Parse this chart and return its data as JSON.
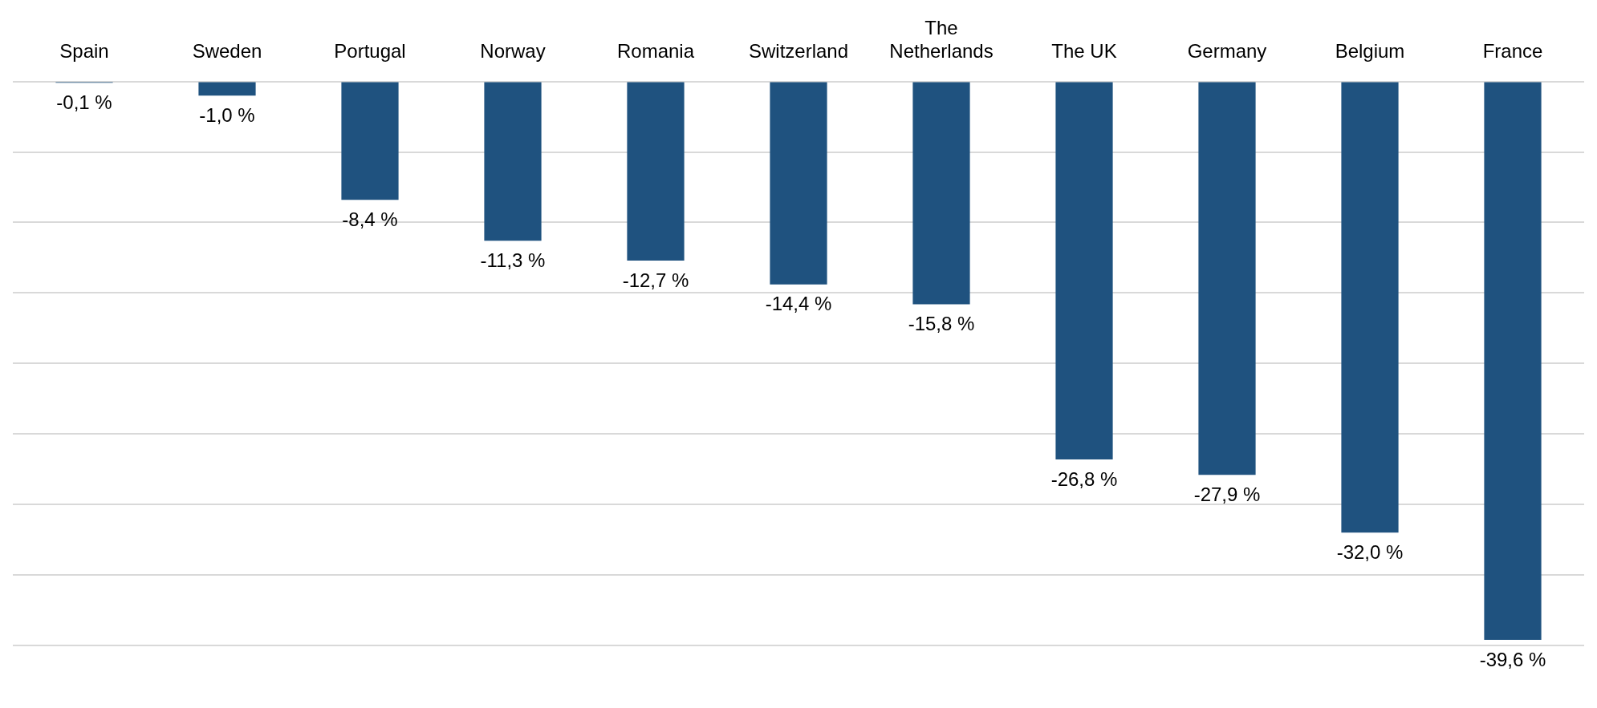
{
  "chart_data": {
    "type": "bar",
    "categories": [
      "Spain",
      "Sweden",
      "Portugal",
      "Norway",
      "Romania",
      "Switzerland",
      "The Netherlands",
      "The UK",
      "Germany",
      "Belgium",
      "France"
    ],
    "values": [
      -0.1,
      -1.0,
      -8.4,
      -11.3,
      -12.7,
      -14.4,
      -15.8,
      -26.8,
      -27.9,
      -32.0,
      -39.6
    ],
    "value_labels": [
      "-0,1 %",
      "-1,0 %",
      "-8,4 %",
      "-11,3 %",
      "-12,7 %",
      "-14,4 %",
      "-15,8 %",
      "-26,8 %",
      "-27,9 %",
      "-32,0 %",
      "-39,6 %"
    ],
    "color": "#1f527f",
    "ylim": [
      -40,
      0
    ],
    "yticks": [
      {
        "value": -40,
        "label": null
      },
      {
        "value": -35,
        "label": null
      },
      {
        "value": -30,
        "label": null
      },
      {
        "value": -25,
        "label": null
      },
      {
        "value": -20,
        "label": null
      },
      {
        "value": -15,
        "label": null
      },
      {
        "value": -10,
        "label": null
      },
      {
        "value": -5,
        "label": null
      },
      {
        "value": 0,
        "label": null
      }
    ],
    "grid": "y",
    "tick_labels": "x",
    "legend": false
  }
}
